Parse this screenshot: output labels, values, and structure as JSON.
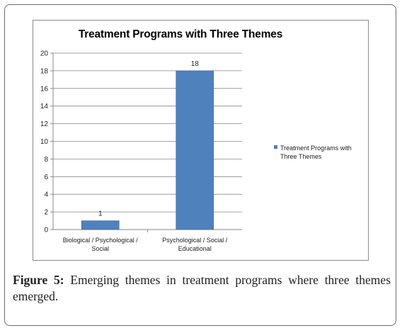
{
  "caption": {
    "label": "Figure 5:",
    "text": "Emerging themes in treatment programs where three themes emerged."
  },
  "colors": {
    "bar": "#4f81bd",
    "bar_edge": "#3a6ea5",
    "gridline": "#8a8a8a",
    "axis": "#8a8a8a"
  },
  "chart_data": {
    "type": "bar",
    "title": "Treatment Programs with Three Themes",
    "xlabel": "",
    "ylabel": "",
    "categories": [
      [
        "Biological / Psychological /",
        "Social"
      ],
      [
        "Psychological / Social /",
        "Educational"
      ]
    ],
    "series": [
      {
        "name": "Treatment Programs with Three Themes",
        "values": [
          1,
          18
        ]
      }
    ],
    "data_labels": [
      "1",
      "18"
    ],
    "ylim": [
      0,
      20
    ],
    "yticks": [
      0,
      2,
      4,
      6,
      8,
      10,
      12,
      14,
      16,
      18,
      20
    ],
    "grid": true,
    "legend": "right"
  }
}
